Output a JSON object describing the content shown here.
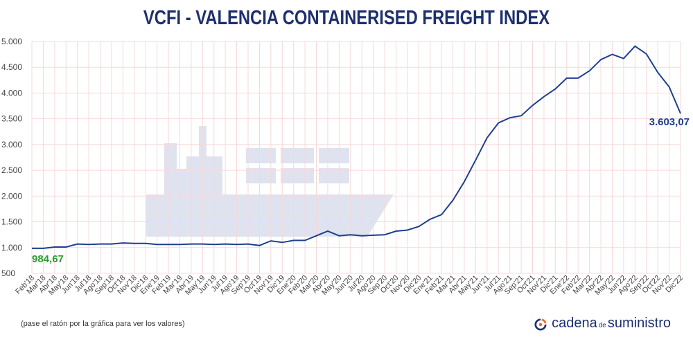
{
  "chart_data": {
    "type": "line",
    "title": "VCFI - VALENCIA CONTAINERISED FREIGHT INDEX",
    "xlabel": "",
    "ylabel": "",
    "ylim": [
      500,
      5000
    ],
    "grid": true,
    "y_ticks": [
      "5.000",
      "4.500",
      "4.000",
      "3.500",
      "3.000",
      "2.500",
      "2.000",
      "1.500",
      "1.000",
      "500"
    ],
    "categories": [
      "Feb'18",
      "Mar'18",
      "Abr'18",
      "May'18",
      "Jun'18",
      "Jul'18",
      "Ago'18",
      "Sep'18",
      "Oct'18",
      "Nov'18",
      "Dic'18",
      "Ene'19",
      "Feb'19",
      "Mar'19",
      "Abr'19",
      "May'19",
      "Jun'19",
      "Jul'19",
      "Ago'19",
      "Sep'19",
      "Oct'19",
      "Nov'19",
      "Dic'19",
      "Ene'20",
      "Feb'20",
      "Mar'20",
      "Abr'20",
      "May'20",
      "Jun'20",
      "Jul'20",
      "Ago'20",
      "Sep'20",
      "Oct'20",
      "Nov'20",
      "Dic'20",
      "Ene'21",
      "Feb'21",
      "Mar'21",
      "Abr'21",
      "May'21",
      "Jun'21",
      "Jul'21",
      "Ago'21",
      "Sep'21",
      "Oct'21",
      "Nov'21",
      "Dic'21",
      "Ene'22",
      "Feb'22",
      "Mar'22",
      "Abr'22",
      "May'22",
      "Jun'22",
      "Ago'22",
      "Sep'22",
      "Oct'22",
      "Nov'22",
      "Dic'22"
    ],
    "series": [
      {
        "color": "#1d3f8f",
        "values": [
          984.67,
          985,
          1010,
          1010,
          1070,
          1060,
          1070,
          1070,
          1090,
          1080,
          1080,
          1060,
          1060,
          1060,
          1070,
          1070,
          1060,
          1070,
          1060,
          1070,
          1040,
          1130,
          1100,
          1140,
          1140,
          1230,
          1320,
          1230,
          1250,
          1230,
          1240,
          1250,
          1320,
          1340,
          1410,
          1550,
          1640,
          1920,
          2280,
          2700,
          3130,
          3420,
          3520,
          3560,
          3760,
          3930,
          4080,
          4290,
          4290,
          4430,
          4650,
          4750,
          4670,
          4910,
          4760,
          4400,
          4120,
          3603.07
        ]
      }
    ],
    "annotations": {
      "start_label": "984,67",
      "end_label": "3.603,07"
    }
  },
  "footer": {
    "hint": "(pase el ratón por la gráfica para ver los valores)",
    "brand_a": "cadena",
    "brand_b": "de",
    "brand_c": "suministro"
  }
}
